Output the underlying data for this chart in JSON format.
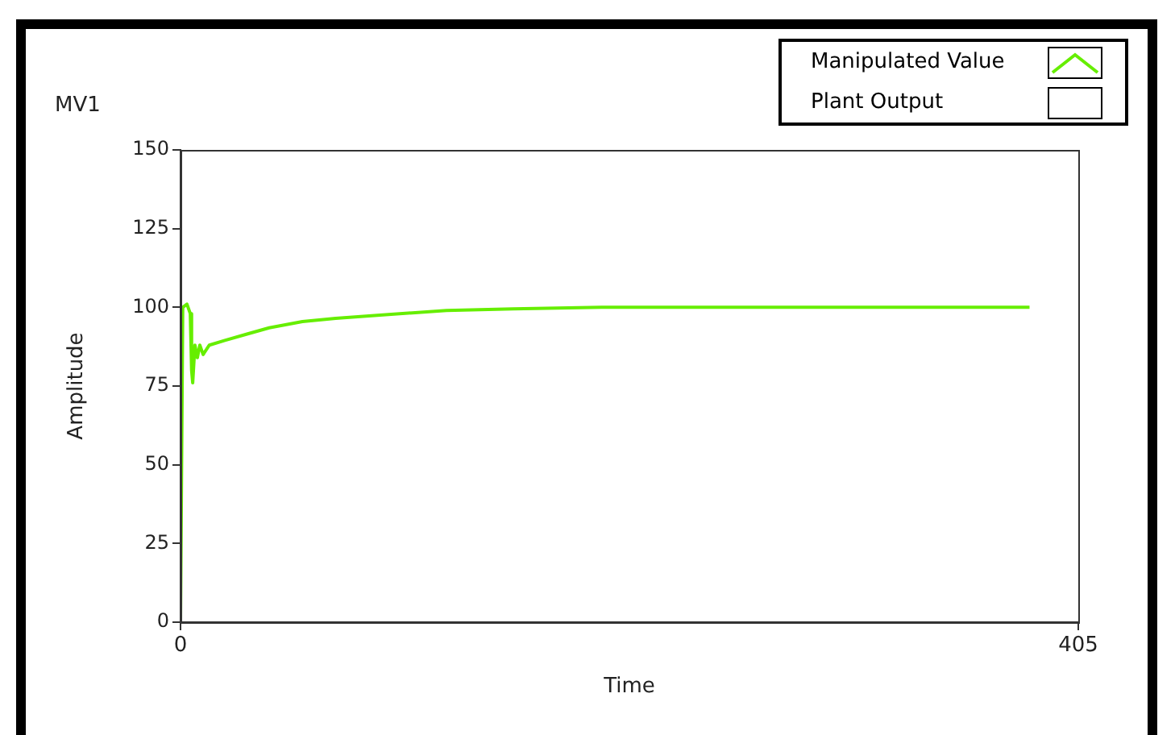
{
  "chart_data": {
    "type": "line",
    "title": "MV1",
    "xlabel": "Time",
    "ylabel": "Amplitude",
    "xlim": [
      0,
      405
    ],
    "xticks": [
      0,
      405
    ],
    "ylim": [
      0,
      150
    ],
    "yticks": [
      0,
      25,
      50,
      75,
      100,
      125,
      150
    ],
    "grid": false,
    "legend": "top right",
    "marker": "none",
    "line_style": "solid",
    "series": [
      {
        "name": "Manipulated Value",
        "color": "#66ee00",
        "x": [
          0,
          0.7,
          1,
          2.9,
          4.4,
          5,
          5.5,
          6.5,
          7.6,
          8.7,
          10.2,
          13,
          20,
          30,
          40,
          55,
          70,
          90,
          120,
          150,
          190,
          250,
          300,
          383
        ],
        "values": [
          0,
          0,
          100,
          101,
          98,
          80,
          76,
          88,
          84,
          88,
          85,
          88,
          89.5,
          91.5,
          93.5,
          95.5,
          96.5,
          97.5,
          99,
          99.5,
          100,
          100,
          100,
          100
        ]
      },
      {
        "name": "Plant Output"
      }
    ]
  }
}
